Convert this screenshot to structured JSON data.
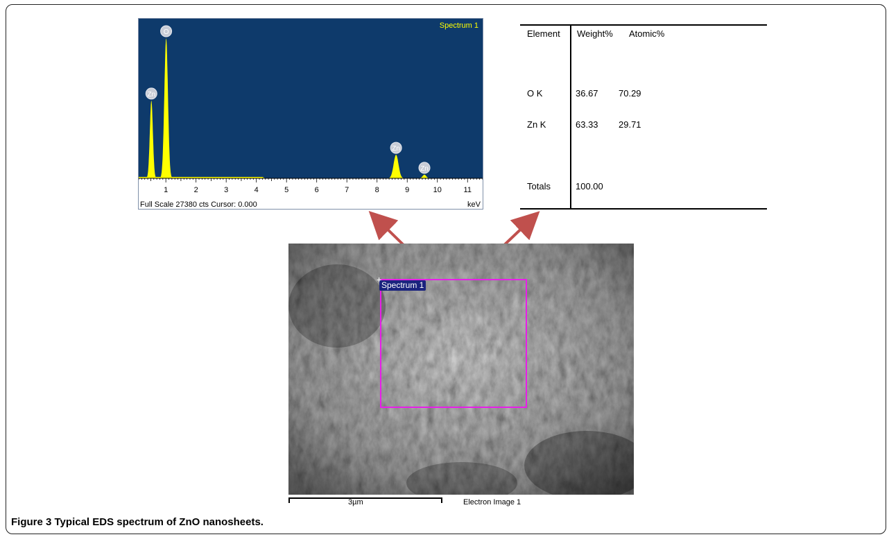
{
  "spectrum": {
    "title": "Spectrum 1",
    "footer_left": "Full Scale 27380 cts Cursor: 0.000",
    "unit": "keV",
    "peak_labels": [
      "Zn",
      "O",
      "Zn",
      "Zn"
    ],
    "colors": {
      "background": "#0e3a6b",
      "peaks": "#ffff00",
      "label_text": "#ffff00"
    }
  },
  "chart_data": {
    "type": "area",
    "x_ticks": [
      "1",
      "2",
      "3",
      "4",
      "5",
      "6",
      "7",
      "8",
      "9",
      "10",
      "11"
    ],
    "xlim": [
      0.1,
      11.5
    ],
    "full_scale_counts": 27380,
    "peaks": [
      {
        "element": "O",
        "energy_keV": 0.52,
        "counts": 15200
      },
      {
        "element": "Zn",
        "energy_keV": 1.01,
        "counts": 27380
      },
      {
        "element": "Zn",
        "energy_keV": 8.63,
        "counts": 4600
      },
      {
        "element": "Zn",
        "energy_keV": 9.57,
        "counts": 700
      }
    ]
  },
  "quant_table": {
    "headers": [
      "Element",
      "Weight%",
      "Atomic%"
    ],
    "rows": [
      {
        "element": "O K",
        "weight": "36.67",
        "atomic": "70.29"
      },
      {
        "element": "Zn K",
        "weight": "63.33",
        "atomic": "29.71"
      }
    ],
    "totals_label": "Totals",
    "totals_value": "100.00"
  },
  "electron_image": {
    "roi_label": "Spectrum 1",
    "scale_label": "3µm",
    "caption": "Electron Image 1",
    "roi_color": "#e81ee8"
  },
  "figure": {
    "caption": "Figure 3 Typical EDS spectrum of ZnO nanosheets."
  }
}
